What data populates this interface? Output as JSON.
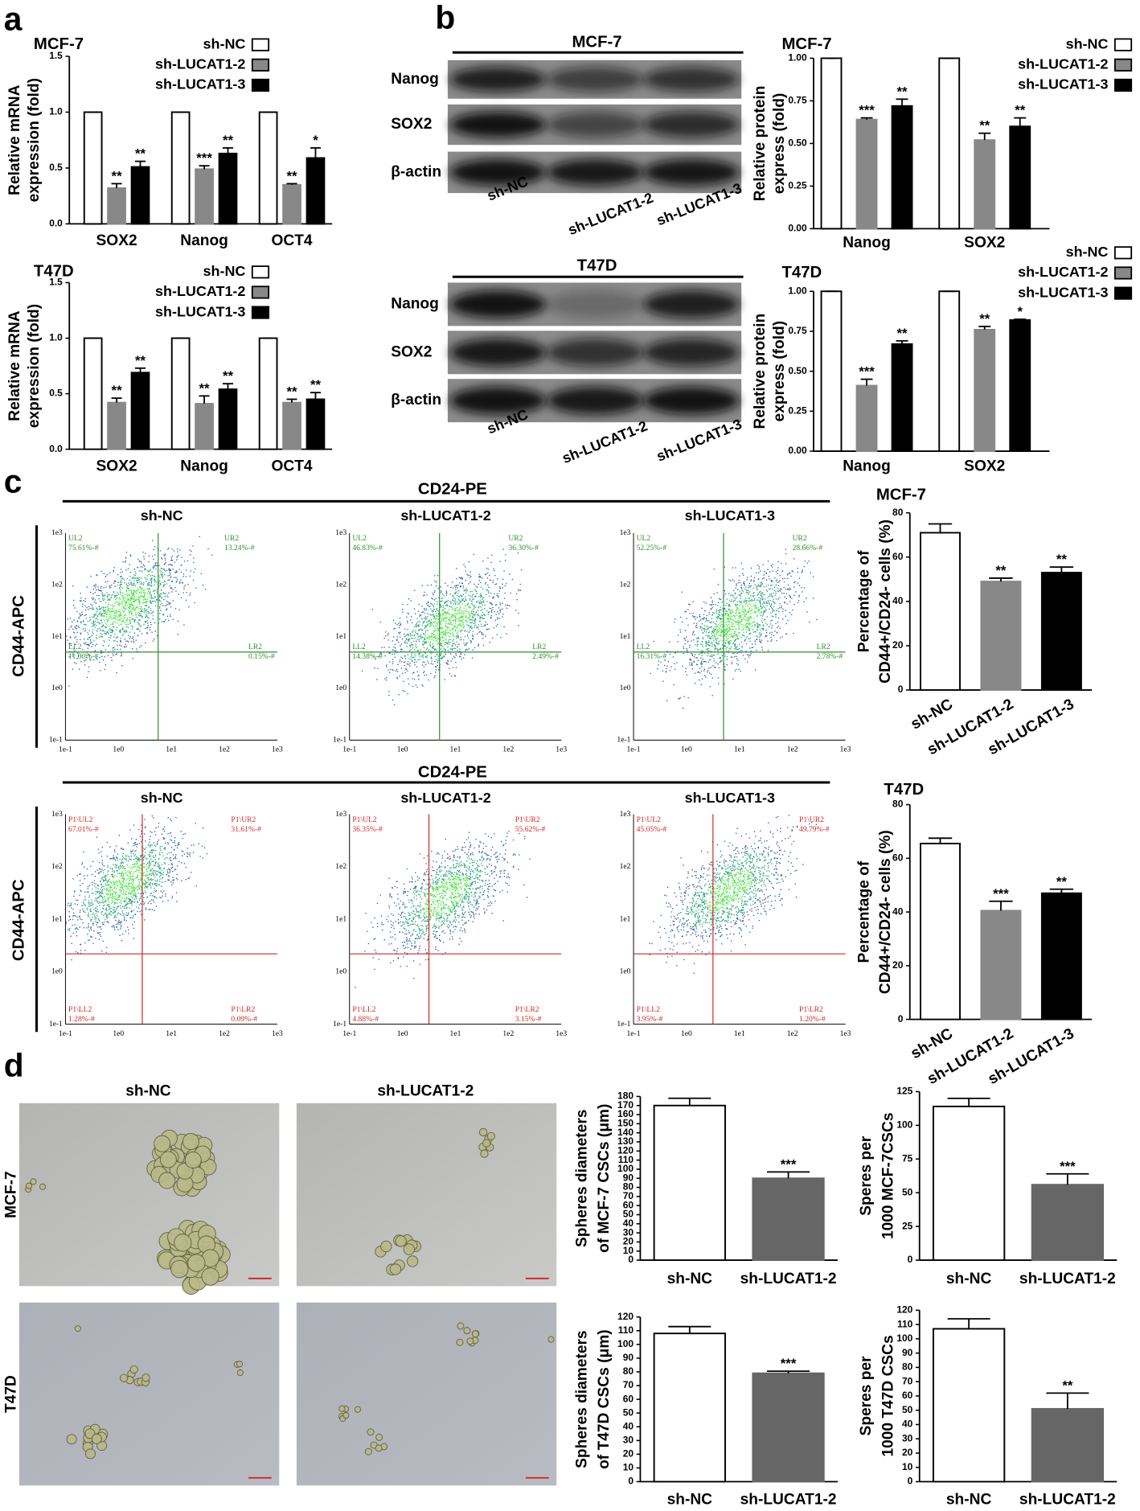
{
  "panel_labels": [
    "a",
    "b",
    "c",
    "d"
  ],
  "chart_data": [
    {
      "type": "bar",
      "title": "MCF-7",
      "ylabel": [
        "Relative mRNA",
        "expression (fold)"
      ],
      "categories": [
        "SOX2",
        "Nanog",
        "OCT4"
      ],
      "series": [
        {
          "name": "sh-NC",
          "color": "#ffffff",
          "values": [
            1,
            1,
            1
          ],
          "errors": [
            0,
            0,
            0
          ],
          "annotations": [
            null,
            null,
            null
          ]
        },
        {
          "name": "sh-LUCAT1-2",
          "color": "#888888",
          "values": [
            0.32,
            0.49,
            0.35
          ],
          "errors": [
            0.04,
            0.03,
            0.01
          ],
          "annotations": [
            "**",
            "***",
            "**"
          ]
        },
        {
          "name": "sh-LUCAT1-3",
          "color": "#000000",
          "values": [
            0.51,
            0.63,
            0.59
          ],
          "errors": [
            0.05,
            0.05,
            0.09
          ],
          "annotations": [
            "**",
            "**",
            "*"
          ]
        }
      ],
      "ylim": [
        0,
        1.5
      ],
      "yticks": [
        {
          "value": 0,
          "label": "0.0"
        },
        0.5,
        {
          "value": 1,
          "label": "1.0"
        },
        1.5
      ],
      "legend": "top-right"
    },
    {
      "type": "bar",
      "title": "T47D",
      "ylabel": [
        "Relative mRNA",
        "expression (fold)"
      ],
      "categories": [
        "SOX2",
        "Nanog",
        "OCT4"
      ],
      "series": [
        {
          "name": "sh-NC",
          "color": "#ffffff",
          "values": [
            1,
            1,
            1
          ],
          "errors": [
            0,
            0,
            0
          ],
          "annotations": [
            null,
            null,
            null
          ]
        },
        {
          "name": "sh-LUCAT1-2",
          "color": "#888888",
          "values": [
            0.42,
            0.41,
            0.42
          ],
          "errors": [
            0.04,
            0.07,
            0.03
          ],
          "annotations": [
            "**",
            "**",
            "**"
          ]
        },
        {
          "name": "sh-LUCAT1-3",
          "color": "#000000",
          "values": [
            0.69,
            0.54,
            0.45
          ],
          "errors": [
            0.04,
            0.05,
            0.06
          ],
          "annotations": [
            "**",
            "**",
            "**"
          ]
        }
      ],
      "ylim": [
        0,
        1.5
      ],
      "yticks": [
        {
          "value": 0,
          "label": "0.0"
        },
        0.5,
        {
          "value": 1,
          "label": "1.0"
        },
        1.5
      ],
      "legend": "top-right"
    },
    {
      "type": "bar",
      "title": "MCF-7",
      "ylabel": [
        "Relative protein",
        "express (fold)"
      ],
      "categories": [
        "Nanog",
        "SOX2"
      ],
      "series": [
        {
          "name": "sh-NC",
          "color": "#ffffff",
          "values": [
            1,
            1
          ],
          "errors": [
            0,
            0
          ],
          "annotations": [
            null,
            null
          ]
        },
        {
          "name": "sh-LUCAT1-2",
          "color": "#888888",
          "values": [
            0.64,
            0.52
          ],
          "errors": [
            0.01,
            0.04
          ],
          "annotations": [
            "***",
            "**"
          ]
        },
        {
          "name": "sh-LUCAT1-3",
          "color": "#000000",
          "values": [
            0.72,
            0.6
          ],
          "errors": [
            0.04,
            0.05
          ],
          "annotations": [
            "**",
            "**"
          ]
        }
      ],
      "ylim": [
        0,
        1
      ],
      "yticks": [
        {
          "value": 0,
          "label": "0.00"
        },
        0.25,
        {
          "value": 0.5,
          "label": "0.50"
        },
        0.75,
        {
          "value": 1,
          "label": "1.00"
        }
      ],
      "legend": "top-right"
    },
    {
      "type": "bar",
      "title": "T47D",
      "ylabel": [
        "Relative protein",
        "express (fold)"
      ],
      "categories": [
        "Nanog",
        "SOX2"
      ],
      "series": [
        {
          "name": "sh-NC",
          "color": "#ffffff",
          "values": [
            1,
            1
          ],
          "errors": [
            0,
            0
          ],
          "annotations": [
            null,
            null
          ]
        },
        {
          "name": "sh-LUCAT1-2",
          "color": "#888888",
          "values": [
            0.41,
            0.76
          ],
          "errors": [
            0.04,
            0.02
          ],
          "annotations": [
            "***",
            "**"
          ]
        },
        {
          "name": "sh-LUCAT1-3",
          "color": "#000000",
          "values": [
            0.67,
            0.82
          ],
          "errors": [
            0.02,
            0.005
          ],
          "annotations": [
            "**",
            "*"
          ]
        }
      ],
      "ylim": [
        0,
        1
      ],
      "yticks": [
        {
          "value": 0,
          "label": "0.00"
        },
        0.25,
        {
          "value": 0.5,
          "label": "0.50"
        },
        0.75,
        {
          "value": 1,
          "label": "1.00"
        }
      ],
      "legend": "top-right"
    },
    {
      "type": "bar",
      "title": "MCF-7",
      "ylabel": [
        "Percentage of",
        "CD44+/CD24- cells (%)"
      ],
      "categories": [
        "sh-NC",
        "sh-LUCAT1-2",
        "sh-LUCAT1-3"
      ],
      "values": [
        71,
        49,
        53
      ],
      "errors": [
        4,
        1.5,
        2.5
      ],
      "colors": [
        "#ffffff",
        "#888888",
        "#000000"
      ],
      "annotations": [
        null,
        "**",
        "**"
      ],
      "ylim": [
        0,
        80
      ],
      "yticks": [
        0,
        20,
        40,
        60,
        80
      ]
    },
    {
      "type": "bar",
      "title": "T47D",
      "ylabel": [
        "Percentage of",
        "CD44+/CD24- cells (%)"
      ],
      "categories": [
        "sh-NC",
        "sh-LUCAT1-2",
        "sh-LUCAT1-3"
      ],
      "values": [
        65.5,
        40.5,
        47
      ],
      "errors": [
        2,
        3.5,
        1.5
      ],
      "colors": [
        "#ffffff",
        "#888888",
        "#000000"
      ],
      "annotations": [
        null,
        "***",
        "**"
      ],
      "ylim": [
        0,
        80
      ],
      "yticks": [
        0,
        20,
        40,
        60,
        80
      ]
    },
    {
      "type": "bar",
      "ylabel": [
        "Spheres diameters",
        "of MCF-7 CSCs (μm)"
      ],
      "categories": [
        "sh-NC",
        "sh-LUCAT1-2"
      ],
      "values": [
        170,
        90
      ],
      "errors": [
        8,
        7
      ],
      "colors": [
        "#ffffff",
        "#666666"
      ],
      "annotations": [
        null,
        "***"
      ],
      "ylim": [
        0,
        180
      ],
      "yticks": [
        0,
        10,
        20,
        30,
        40,
        50,
        60,
        70,
        80,
        90,
        100,
        110,
        120,
        130,
        140,
        150,
        160,
        170,
        180
      ]
    },
    {
      "type": "bar",
      "ylabel": [
        "Speres per",
        "1000 MCF-7CSCs"
      ],
      "categories": [
        "sh-NC",
        "sh-LUCAT1-2"
      ],
      "values": [
        114,
        56
      ],
      "errors": [
        6,
        8
      ],
      "colors": [
        "#ffffff",
        "#666666"
      ],
      "annotations": [
        null,
        "***"
      ],
      "ylim": [
        0,
        125
      ],
      "yticks": [
        0,
        25,
        50,
        75,
        100,
        125
      ]
    },
    {
      "type": "bar",
      "ylabel": [
        "Spheres diameters",
        "of T47D CSCs (μm)"
      ],
      "categories": [
        "sh-NC",
        "sh-LUCAT1-2"
      ],
      "values": [
        108,
        79
      ],
      "errors": [
        5,
        1.5
      ],
      "colors": [
        "#ffffff",
        "#666666"
      ],
      "annotations": [
        null,
        "***"
      ],
      "ylim": [
        0,
        120
      ],
      "yticks": [
        0,
        10,
        20,
        30,
        40,
        50,
        60,
        70,
        80,
        90,
        100,
        110,
        120
      ]
    },
    {
      "type": "bar",
      "ylabel": [
        "Speres per",
        "1000 T47D CSCs"
      ],
      "categories": [
        "sh-NC",
        "sh-LUCAT1-2"
      ],
      "values": [
        107,
        51
      ],
      "errors": [
        7,
        11
      ],
      "colors": [
        "#ffffff",
        "#666666"
      ],
      "annotations": [
        null,
        "**"
      ],
      "ylim": [
        0,
        120
      ],
      "yticks": [
        0,
        10,
        20,
        30,
        40,
        50,
        60,
        70,
        80,
        90,
        100,
        110,
        120
      ]
    }
  ],
  "blots": [
    {
      "title": "MCF-7",
      "rows": [
        "Nanog",
        "SOX2",
        "β-actin"
      ],
      "lanes": [
        "sh-NC",
        "sh-LUCAT1-2",
        "sh-LUCAT1-3"
      ]
    },
    {
      "title": "T47D",
      "rows": [
        "Nanog",
        "SOX2",
        "β-actin"
      ],
      "lanes": [
        "sh-NC",
        "sh-LUCAT1-2",
        "sh-LUCAT1-3"
      ]
    }
  ],
  "flow": [
    {
      "x_label": "CD24-PE",
      "y_label": "CD44-APC",
      "ticks": [
        "1e-1",
        "1e0",
        "1e1",
        "1e2",
        "1e3"
      ],
      "plots": [
        {
          "title": "sh-NC",
          "quadrants": [
            {
              "name": "UL2",
              "value": "75.61%-#"
            },
            {
              "name": "UR2",
              "value": "13.24%-#"
            },
            {
              "name": "LL2",
              "value": "11.00%-#"
            },
            {
              "name": "LR2",
              "value": "0.15%-#"
            }
          ]
        },
        {
          "title": "sh-LUCAT1-2",
          "quadrants": [
            {
              "name": "UL2",
              "value": "46.83%-#"
            },
            {
              "name": "UR2",
              "value": "36.30%-#"
            },
            {
              "name": "LL2",
              "value": "14.38%-#"
            },
            {
              "name": "LR2",
              "value": "2.49%-#"
            }
          ]
        },
        {
          "title": "sh-LUCAT1-3",
          "quadrants": [
            {
              "name": "UL2",
              "value": "52.25%-#"
            },
            {
              "name": "UR2",
              "value": "28.66%-#"
            },
            {
              "name": "LL2",
              "value": "16.31%-#"
            },
            {
              "name": "LR2",
              "value": "2.78%-#"
            }
          ]
        }
      ]
    },
    {
      "x_label": "CD24-PE",
      "y_label": "CD44-APC",
      "ticks": [
        "1e-1",
        "1e0",
        "1e1",
        "1e2",
        "1e3"
      ],
      "plots": [
        {
          "title": "sh-NC",
          "quadrants": [
            {
              "name": "P1\\UL2",
              "value": "67.01%-#"
            },
            {
              "name": "P1\\UR2",
              "value": "31.61%-#"
            },
            {
              "name": "P1\\LL2",
              "value": "1.28%-#"
            },
            {
              "name": "P1\\LR2",
              "value": "0.09%-#"
            }
          ]
        },
        {
          "title": "sh-LUCAT1-2",
          "quadrants": [
            {
              "name": "P1\\UL2",
              "value": "36.35%-#"
            },
            {
              "name": "P1\\UR2",
              "value": "55.62%-#"
            },
            {
              "name": "P1\\LL2",
              "value": "4.88%-#"
            },
            {
              "name": "P1\\LR2",
              "value": "3.15%-#"
            }
          ]
        },
        {
          "title": "sh-LUCAT1-3",
          "quadrants": [
            {
              "name": "P1\\UL2",
              "value": "45.05%-#"
            },
            {
              "name": "P1\\UR2",
              "value": "49.79%-#"
            },
            {
              "name": "P1\\LL2",
              "value": "3.95%-#"
            },
            {
              "name": "P1\\LR2",
              "value": "1.20%-#"
            }
          ]
        }
      ]
    }
  ],
  "spheres": {
    "columns": [
      "sh-NC",
      "sh-LUCAT1-2"
    ],
    "rows": [
      "MCF-7",
      "T47D"
    ]
  }
}
